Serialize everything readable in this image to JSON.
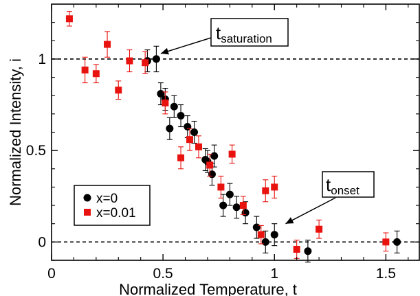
{
  "chart_data": {
    "type": "scatter",
    "xlabel": "Normalized Temperature, t",
    "ylabel": "Normalized Intensity, i",
    "xlim": [
      0,
      1.65
    ],
    "ylim": [
      -0.1,
      1.3
    ],
    "xticks": [
      0,
      0.5,
      1,
      1.5
    ],
    "xtick_labels": [
      "0",
      "0.5",
      "1",
      "1.5"
    ],
    "yticks": [
      0,
      0.5,
      1
    ],
    "ytick_labels": [
      "0",
      "0.5",
      "1"
    ],
    "reference_lines": [
      1,
      0
    ],
    "grid": false,
    "legend_position": "bottom-left",
    "series": [
      {
        "name": "x=0",
        "marker": "circle",
        "color": "#000000",
        "points": [
          {
            "x": 0.43,
            "y": 0.99,
            "err": 0.06
          },
          {
            "x": 0.47,
            "y": 1.0,
            "err": 0.07
          },
          {
            "x": 0.49,
            "y": 0.81,
            "err": 0.06
          },
          {
            "x": 0.51,
            "y": 0.78,
            "err": 0.06
          },
          {
            "x": 0.53,
            "y": 0.62,
            "err": 0.06
          },
          {
            "x": 0.55,
            "y": 0.74,
            "err": 0.06
          },
          {
            "x": 0.58,
            "y": 0.69,
            "err": 0.06
          },
          {
            "x": 0.61,
            "y": 0.63,
            "err": 0.06
          },
          {
            "x": 0.64,
            "y": 0.6,
            "err": 0.06
          },
          {
            "x": 0.69,
            "y": 0.45,
            "err": 0.06
          },
          {
            "x": 0.7,
            "y": 0.44,
            "err": 0.06
          },
          {
            "x": 0.72,
            "y": 0.37,
            "err": 0.06
          },
          {
            "x": 0.73,
            "y": 0.47,
            "err": 0.06
          },
          {
            "x": 0.77,
            "y": 0.2,
            "err": 0.06
          },
          {
            "x": 0.8,
            "y": 0.26,
            "err": 0.06
          },
          {
            "x": 0.83,
            "y": 0.19,
            "err": 0.06
          },
          {
            "x": 0.87,
            "y": 0.16,
            "err": 0.06
          },
          {
            "x": 0.92,
            "y": 0.08,
            "err": 0.06
          },
          {
            "x": 0.96,
            "y": 0.0,
            "err": 0.06
          },
          {
            "x": 1.0,
            "y": 0.04,
            "err": 0.06
          },
          {
            "x": 1.15,
            "y": -0.05,
            "err": 0.06
          },
          {
            "x": 1.55,
            "y": 0.0,
            "err": 0.06
          }
        ]
      },
      {
        "name": "x=0.01",
        "marker": "square",
        "color": "#e8130f",
        "points": [
          {
            "x": 0.08,
            "y": 1.22,
            "err": 0.04
          },
          {
            "x": 0.15,
            "y": 0.94,
            "err": 0.07
          },
          {
            "x": 0.2,
            "y": 0.92,
            "err": 0.05
          },
          {
            "x": 0.25,
            "y": 1.08,
            "err": 0.07
          },
          {
            "x": 0.3,
            "y": 0.83,
            "err": 0.05
          },
          {
            "x": 0.35,
            "y": 0.99,
            "err": 0.06
          },
          {
            "x": 0.42,
            "y": 0.98,
            "err": 0.06
          },
          {
            "x": 0.51,
            "y": 0.76,
            "err": 0.06
          },
          {
            "x": 0.58,
            "y": 0.46,
            "err": 0.06
          },
          {
            "x": 0.62,
            "y": 0.56,
            "err": 0.06
          },
          {
            "x": 0.66,
            "y": 0.52,
            "err": 0.06
          },
          {
            "x": 0.71,
            "y": 0.42,
            "err": 0.06
          },
          {
            "x": 0.76,
            "y": 0.3,
            "err": 0.06
          },
          {
            "x": 0.81,
            "y": 0.48,
            "err": 0.05
          },
          {
            "x": 0.86,
            "y": 0.2,
            "err": 0.05
          },
          {
            "x": 0.94,
            "y": 0.04,
            "err": 0.05
          },
          {
            "x": 0.96,
            "y": 0.28,
            "err": 0.06
          },
          {
            "x": 1.0,
            "y": 0.3,
            "err": 0.06
          },
          {
            "x": 1.1,
            "y": -0.04,
            "err": 0.05
          },
          {
            "x": 1.2,
            "y": 0.07,
            "err": 0.05
          },
          {
            "x": 1.5,
            "y": 0.0,
            "err": 0.05
          }
        ]
      }
    ],
    "annotations": [
      {
        "text_main": "t",
        "text_sub": "saturation",
        "point_x": 0.49,
        "point_y": 1.03
      },
      {
        "text_main": "t",
        "text_sub": "onset",
        "point_x": 1.05,
        "point_y": 0.1
      }
    ]
  }
}
